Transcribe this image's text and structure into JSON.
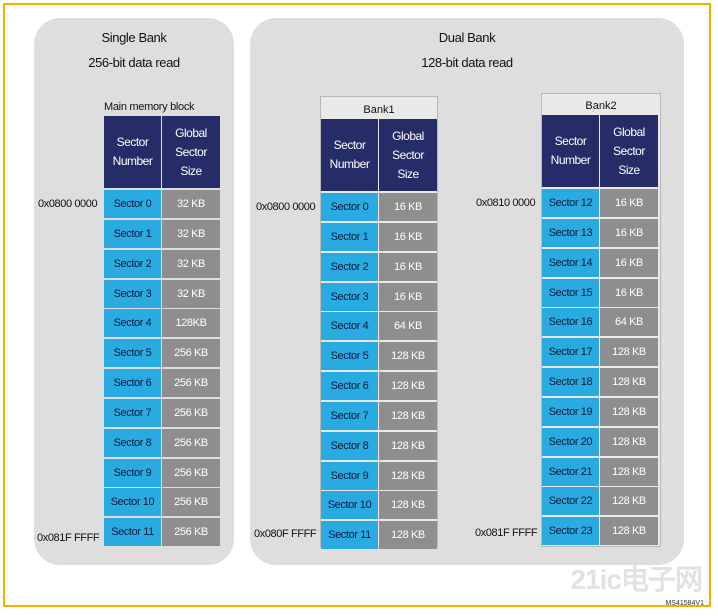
{
  "single_bank": {
    "title": "Single Bank",
    "subtitle": "256-bit data read",
    "block_title": "Main memory block",
    "start_address": "0x0800 0000",
    "end_address": "0x081F FFFF",
    "header": {
      "col1": "Sector\nNumber",
      "col2": "Global\nSector\nSize"
    },
    "rows": [
      {
        "sector": "Sector 0",
        "size": "32 KB"
      },
      {
        "sector": "Sector 1",
        "size": "32 KB"
      },
      {
        "sector": "Sector 2",
        "size": "32 KB"
      },
      {
        "sector": "Sector 3",
        "size": "32 KB"
      },
      {
        "sector": "Sector 4",
        "size": "128KB"
      },
      {
        "sector": "Sector 5",
        "size": "256 KB"
      },
      {
        "sector": "Sector 6",
        "size": "256 KB"
      },
      {
        "sector": "Sector 7",
        "size": "256 KB"
      },
      {
        "sector": "Sector 8",
        "size": "256 KB"
      },
      {
        "sector": "Sector 9",
        "size": "256 KB"
      },
      {
        "sector": "Sector 10",
        "size": "256 KB"
      },
      {
        "sector": "Sector 11",
        "size": "256 KB"
      }
    ]
  },
  "dual_bank": {
    "title": "Dual Bank",
    "subtitle": "128-bit data read",
    "bank1": {
      "label": "Bank1",
      "start_address": "0x0800 0000",
      "end_address": "0x080F FFFF",
      "header": {
        "col1": "Sector\nNumber",
        "col2": "Global\nSector\nSize"
      },
      "rows": [
        {
          "sector": "Sector 0",
          "size": "16 KB"
        },
        {
          "sector": "Sector 1",
          "size": "16 KB"
        },
        {
          "sector": "Sector 2",
          "size": "16 KB"
        },
        {
          "sector": "Sector 3",
          "size": "16 KB"
        },
        {
          "sector": "Sector 4",
          "size": "64 KB"
        },
        {
          "sector": "Sector 5",
          "size": "128 KB"
        },
        {
          "sector": "Sector 6",
          "size": "128 KB"
        },
        {
          "sector": "Sector 7",
          "size": "128 KB"
        },
        {
          "sector": "Sector 8",
          "size": "128 KB"
        },
        {
          "sector": "Sector 9",
          "size": "128 KB"
        },
        {
          "sector": "Sector 10",
          "size": "128 KB"
        },
        {
          "sector": "Sector 11",
          "size": "128 KB"
        }
      ]
    },
    "bank2": {
      "label": "Bank2",
      "start_address": "0x0810 0000",
      "end_address": "0x081F FFFF",
      "header": {
        "col1": "Sector\nNumber",
        "col2": "Global\nSector\nSize"
      },
      "rows": [
        {
          "sector": "Sector 12",
          "size": "16 KB"
        },
        {
          "sector": "Sector 13",
          "size": "16 KB"
        },
        {
          "sector": "Sector 14",
          "size": "16 KB"
        },
        {
          "sector": "Sector 15",
          "size": "16 KB"
        },
        {
          "sector": "Sector 16",
          "size": "64 KB"
        },
        {
          "sector": "Sector 17",
          "size": "128 KB"
        },
        {
          "sector": "Sector 18",
          "size": "128 KB"
        },
        {
          "sector": "Sector 19",
          "size": "128 KB"
        },
        {
          "sector": "Sector 20",
          "size": "128 KB"
        },
        {
          "sector": "Sector 21",
          "size": "128 KB"
        },
        {
          "sector": "Sector 22",
          "size": "128 KB"
        },
        {
          "sector": "Sector 23",
          "size": "128 KB"
        }
      ]
    }
  },
  "watermark": {
    "text": "21ic电子网",
    "code": "MS41584V1"
  },
  "colors": {
    "header": "#262c68",
    "sector_cell": "#29abe2",
    "size_cell": "#8e8e8e",
    "panel": "#dedede",
    "border": "#e8b800"
  }
}
